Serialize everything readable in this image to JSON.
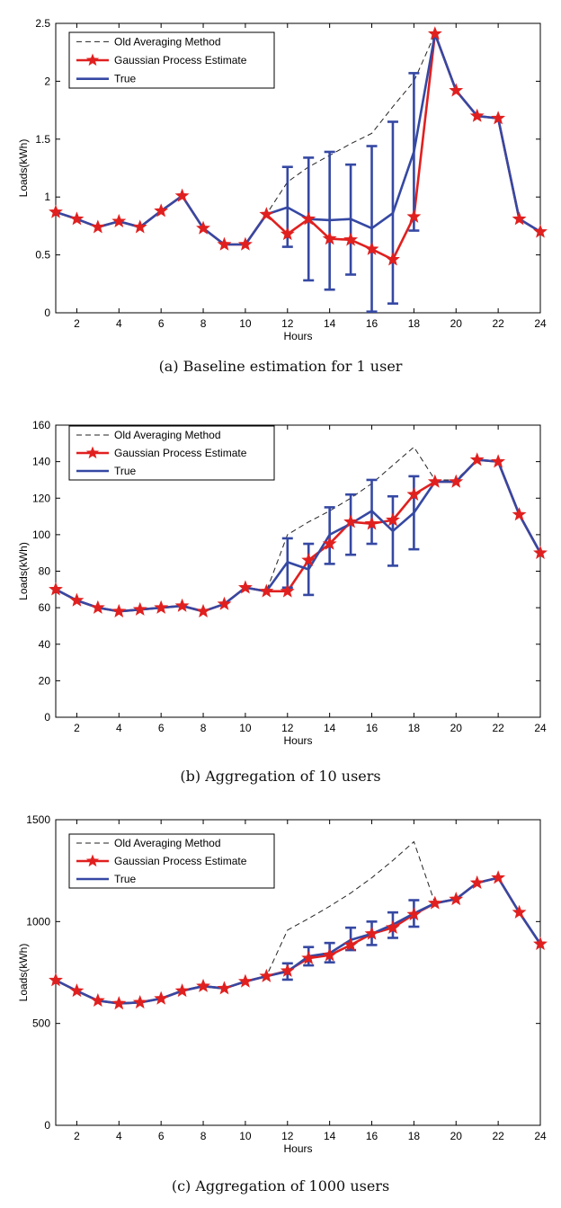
{
  "colors": {
    "old": "#222222",
    "gp": "#e0201f",
    "gp_marker": "#e0201f",
    "true_line": "#3548a3",
    "error_bar": "#3548a3",
    "axis": "#000000"
  },
  "legend_labels": {
    "old": "Old Averaging Method",
    "gp": "Gaussian Process Estimate",
    "true": "True"
  },
  "chart_data": [
    {
      "type": "line",
      "title": "",
      "caption": "(a) Baseline estimation for 1 user",
      "xlabel": "Hours",
      "ylabel": "Loads(kWh)",
      "xlim": [
        1,
        24
      ],
      "ylim": [
        0,
        2.5
      ],
      "xticks": [
        "2",
        "4",
        "6",
        "8",
        "10",
        "12",
        "14",
        "16",
        "18",
        "20",
        "22",
        "24"
      ],
      "yticks": [
        "0",
        "0.5",
        "1",
        "1.5",
        "2",
        "2.5"
      ],
      "legend_position": "top-left",
      "x": [
        1,
        2,
        3,
        4,
        5,
        6,
        7,
        8,
        9,
        10,
        11,
        12,
        13,
        14,
        15,
        16,
        17,
        18,
        19,
        20,
        21,
        22,
        23,
        24
      ],
      "series": [
        {
          "name": "Old Averaging Method",
          "style": "dashed",
          "values": [
            0.87,
            0.81,
            0.74,
            0.79,
            0.74,
            0.88,
            1.01,
            0.73,
            0.59,
            0.59,
            0.85,
            1.13,
            1.26,
            1.36,
            1.46,
            1.55,
            1.78,
            2.0,
            2.41,
            1.92,
            1.7,
            1.68,
            0.81,
            0.7
          ]
        },
        {
          "name": "Gaussian Process Estimate",
          "style": "line-star",
          "values": [
            0.87,
            0.81,
            0.74,
            0.79,
            0.74,
            0.88,
            1.01,
            0.73,
            0.59,
            0.59,
            0.85,
            0.68,
            0.81,
            0.64,
            0.63,
            0.55,
            0.46,
            0.83,
            2.41,
            1.92,
            1.7,
            1.68,
            0.81,
            0.7
          ]
        },
        {
          "name": "True",
          "style": "line",
          "values": [
            0.87,
            0.81,
            0.74,
            0.79,
            0.74,
            0.88,
            1.01,
            0.73,
            0.59,
            0.59,
            0.85,
            0.91,
            0.81,
            0.8,
            0.81,
            0.73,
            0.86,
            1.39,
            2.41,
            1.92,
            1.7,
            1.68,
            0.81,
            0.7
          ]
        }
      ],
      "error_bars": [
        {
          "x": 12,
          "low": 0.57,
          "high": 1.26
        },
        {
          "x": 13,
          "low": 0.28,
          "high": 1.34
        },
        {
          "x": 14,
          "low": 0.2,
          "high": 1.39
        },
        {
          "x": 15,
          "low": 0.33,
          "high": 1.28
        },
        {
          "x": 16,
          "low": 0.01,
          "high": 1.44
        },
        {
          "x": 17,
          "low": 0.08,
          "high": 1.65
        },
        {
          "x": 18,
          "low": 0.71,
          "high": 2.07
        }
      ]
    },
    {
      "type": "line",
      "title": "",
      "caption": "(b) Aggregation of 10 users",
      "xlabel": "Hours",
      "ylabel": "Loads(kWh)",
      "xlim": [
        1,
        24
      ],
      "ylim": [
        0,
        160
      ],
      "xticks": [
        "2",
        "4",
        "6",
        "8",
        "10",
        "12",
        "14",
        "16",
        "18",
        "20",
        "22",
        "24"
      ],
      "yticks": [
        "0",
        "20",
        "40",
        "60",
        "80",
        "100",
        "120",
        "140",
        "160"
      ],
      "legend_position": "top-left",
      "x": [
        1,
        2,
        3,
        4,
        5,
        6,
        7,
        8,
        9,
        10,
        11,
        12,
        13,
        14,
        15,
        16,
        17,
        18,
        19,
        20,
        21,
        22,
        23,
        24
      ],
      "series": [
        {
          "name": "Old Averaging Method",
          "style": "dashed",
          "values": [
            70,
            64,
            60,
            58,
            59,
            60,
            61,
            58,
            62,
            71,
            69,
            100,
            107,
            113,
            120,
            128,
            138,
            148,
            130,
            130,
            141,
            140,
            111,
            90
          ]
        },
        {
          "name": "Gaussian Process Estimate",
          "style": "line-star",
          "values": [
            70,
            64,
            60,
            58,
            59,
            60,
            61,
            58,
            62,
            71,
            69,
            69,
            86,
            95,
            107,
            106,
            108,
            122,
            129,
            129,
            141,
            140,
            111,
            90
          ]
        },
        {
          "name": "True",
          "style": "line",
          "values": [
            70,
            64,
            60,
            58,
            59,
            60,
            61,
            58,
            62,
            71,
            69,
            85,
            81,
            100,
            106,
            113,
            102,
            112,
            129,
            129,
            141,
            140,
            111,
            90
          ]
        }
      ],
      "error_bars": [
        {
          "x": 12,
          "low": 71,
          "high": 98
        },
        {
          "x": 13,
          "low": 67,
          "high": 95
        },
        {
          "x": 14,
          "low": 84,
          "high": 115
        },
        {
          "x": 15,
          "low": 89,
          "high": 122
        },
        {
          "x": 16,
          "low": 95,
          "high": 130
        },
        {
          "x": 17,
          "low": 83,
          "high": 121
        },
        {
          "x": 18,
          "low": 92,
          "high": 132
        }
      ]
    },
    {
      "type": "line",
      "title": "",
      "caption": "(c) Aggregation of 1000 users",
      "xlabel": "Hours",
      "ylabel": "Loads(kWh)",
      "xlim": [
        1,
        24
      ],
      "ylim": [
        0,
        1500
      ],
      "xticks": [
        "2",
        "4",
        "6",
        "8",
        "10",
        "12",
        "14",
        "16",
        "18",
        "20",
        "22",
        "24"
      ],
      "yticks": [
        "0",
        "500",
        "1000",
        "1500"
      ],
      "legend_position": "top-left",
      "x": [
        1,
        2,
        3,
        4,
        5,
        6,
        7,
        8,
        9,
        10,
        11,
        12,
        13,
        14,
        15,
        16,
        17,
        18,
        19,
        20,
        21,
        22,
        23,
        24
      ],
      "series": [
        {
          "name": "Old Averaging Method",
          "style": "dashed",
          "values": [
            712,
            660,
            612,
            598,
            603,
            622,
            660,
            683,
            672,
            706,
            732,
            958,
            1015,
            1075,
            1140,
            1215,
            1300,
            1392,
            1090,
            1110,
            1190,
            1215,
            1045,
            890
          ]
        },
        {
          "name": "Gaussian Process Estimate",
          "style": "line-star",
          "values": [
            712,
            660,
            612,
            598,
            603,
            622,
            660,
            683,
            672,
            706,
            732,
            758,
            820,
            835,
            885,
            940,
            970,
            1035,
            1090,
            1110,
            1190,
            1215,
            1045,
            890
          ]
        },
        {
          "name": "True",
          "style": "line",
          "values": [
            712,
            660,
            612,
            598,
            603,
            622,
            660,
            683,
            672,
            706,
            732,
            755,
            830,
            845,
            910,
            940,
            985,
            1040,
            1090,
            1110,
            1190,
            1215,
            1045,
            890
          ]
        }
      ],
      "error_bars": [
        {
          "x": 12,
          "low": 715,
          "high": 795
        },
        {
          "x": 13,
          "low": 785,
          "high": 875
        },
        {
          "x": 14,
          "low": 800,
          "high": 895
        },
        {
          "x": 15,
          "low": 860,
          "high": 970
        },
        {
          "x": 16,
          "low": 885,
          "high": 1000
        },
        {
          "x": 17,
          "low": 920,
          "high": 1045
        },
        {
          "x": 18,
          "low": 975,
          "high": 1105
        }
      ]
    }
  ]
}
